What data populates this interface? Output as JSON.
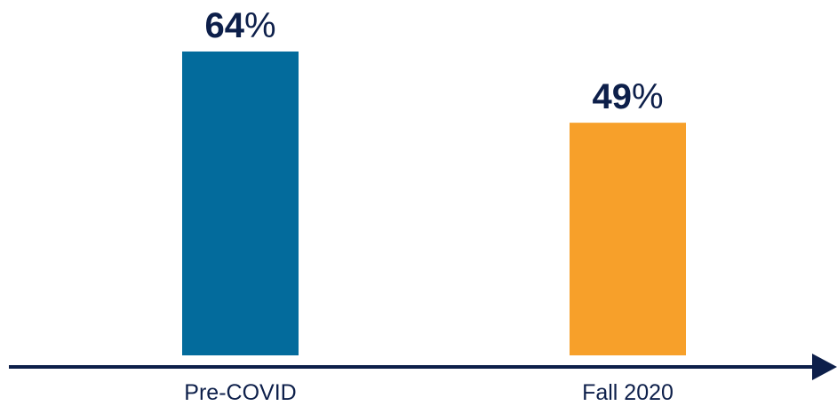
{
  "chart_data": {
    "type": "bar",
    "categories": [
      "Pre-COVID",
      "Fall 2020"
    ],
    "values": [
      64,
      49
    ],
    "value_labels": [
      "64%",
      "49%"
    ],
    "colors": [
      "#036b9c",
      "#f7a02a"
    ]
  }
}
